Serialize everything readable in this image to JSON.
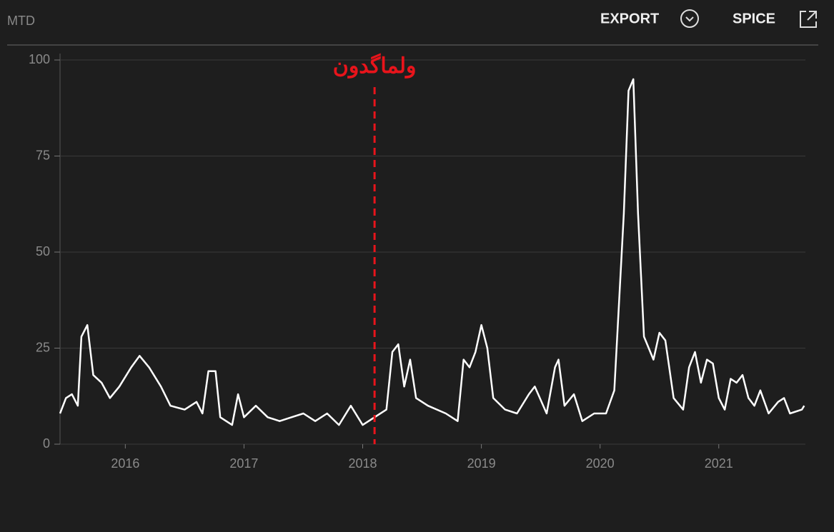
{
  "header": {
    "left": "MTD",
    "export": "EXPORT",
    "spice": "SPICE"
  },
  "chart_data": {
    "type": "line",
    "color": "#ffffff",
    "grid": true,
    "xlim": [
      2015.45,
      2021.73
    ],
    "ylim": [
      0,
      100
    ],
    "xticks": [
      2016,
      2017,
      2018,
      2019,
      2020,
      2021
    ],
    "yticks": [
      0,
      25,
      50,
      75,
      100
    ],
    "annotations": [
      {
        "label": "ولماگدون",
        "x": 2018.1,
        "color": "#e8141b"
      }
    ],
    "x": [
      2015.45,
      2015.5,
      2015.55,
      2015.6,
      2015.63,
      2015.68,
      2015.73,
      2015.8,
      2015.87,
      2015.95,
      2016.05,
      2016.12,
      2016.2,
      2016.3,
      2016.38,
      2016.5,
      2016.6,
      2016.65,
      2016.7,
      2016.76,
      2016.8,
      2016.9,
      2016.95,
      2017.0,
      2017.1,
      2017.2,
      2017.3,
      2017.4,
      2017.5,
      2017.6,
      2017.7,
      2017.8,
      2017.9,
      2018.0,
      2018.1,
      2018.2,
      2018.25,
      2018.3,
      2018.35,
      2018.4,
      2018.45,
      2018.55,
      2018.7,
      2018.8,
      2018.85,
      2018.9,
      2018.95,
      2019.0,
      2019.05,
      2019.1,
      2019.2,
      2019.3,
      2019.4,
      2019.45,
      2019.55,
      2019.62,
      2019.65,
      2019.7,
      2019.78,
      2019.85,
      2019.95,
      2020.05,
      2020.12,
      2020.2,
      2020.24,
      2020.28,
      2020.32,
      2020.37,
      2020.45,
      2020.5,
      2020.55,
      2020.62,
      2020.7,
      2020.75,
      2020.8,
      2020.85,
      2020.9,
      2020.95,
      2021.0,
      2021.05,
      2021.1,
      2021.15,
      2021.2,
      2021.25,
      2021.3,
      2021.35,
      2021.42,
      2021.5,
      2021.55,
      2021.6,
      2021.7,
      2021.72
    ],
    "values": [
      8,
      12,
      13,
      10,
      28,
      31,
      18,
      16,
      12,
      15,
      20,
      23,
      20,
      15,
      10,
      9,
      11,
      8,
      19,
      19,
      7,
      5,
      13,
      7,
      10,
      7,
      6,
      7,
      8,
      6,
      8,
      5,
      10,
      5,
      7,
      9,
      24,
      26,
      15,
      22,
      12,
      10,
      8,
      6,
      22,
      20,
      24,
      31,
      25,
      12,
      9,
      8,
      13,
      15,
      8,
      20,
      22,
      10,
      13,
      6,
      8,
      8,
      14,
      60,
      92,
      95,
      60,
      28,
      22,
      29,
      27,
      12,
      9,
      20,
      24,
      16,
      22,
      21,
      12,
      9,
      17,
      16,
      18,
      12,
      10,
      14,
      8,
      11,
      12,
      8,
      9,
      10
    ]
  }
}
